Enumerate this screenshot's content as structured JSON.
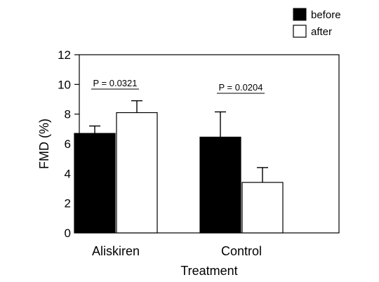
{
  "chart_data": {
    "type": "bar",
    "title": "",
    "xlabel": "Treatment",
    "ylabel": "FMD (%)",
    "categories": [
      "Aliskiren",
      "Control"
    ],
    "series": [
      {
        "name": "before",
        "values": [
          6.7,
          6.45
        ],
        "errors": [
          0.5,
          1.7
        ],
        "color": "#000000"
      },
      {
        "name": "after",
        "values": [
          8.1,
          3.4
        ],
        "errors": [
          0.8,
          1.0
        ],
        "color": "#ffffff"
      }
    ],
    "ylim": [
      0,
      12
    ],
    "yticks": [
      "0",
      "2",
      "4",
      "6",
      "8",
      "10",
      "12"
    ],
    "legend_position": "top-right",
    "annotations": [
      "P = 0.0321",
      "P = 0.0204"
    ],
    "grid": false
  }
}
